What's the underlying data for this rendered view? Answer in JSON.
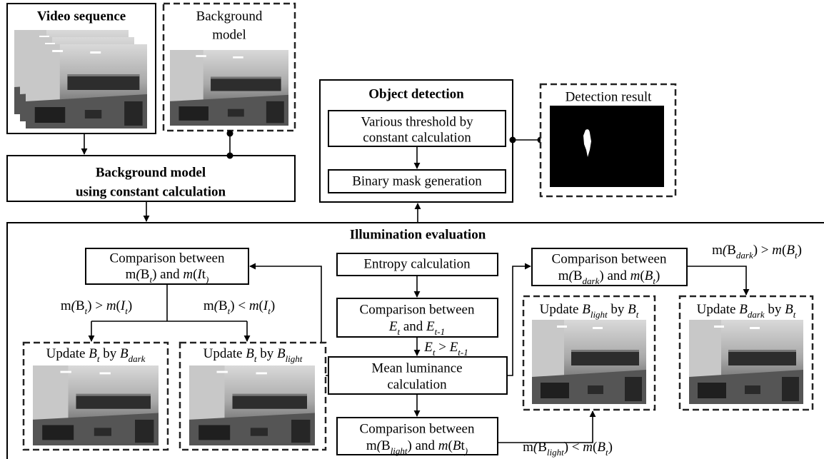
{
  "video_sequence": {
    "title": "Video sequence"
  },
  "background_model": {
    "label": [
      "Background",
      "model"
    ]
  },
  "constant_calculation": {
    "label": [
      "Background model",
      "using constant calculation"
    ]
  },
  "object_detection": {
    "title": "Object detection",
    "threshold": [
      "Various threshold by",
      "constant calculation"
    ],
    "mask": "Binary mask generation"
  },
  "detection_result": {
    "title": "Detection result"
  },
  "illumination_evaluation": {
    "title": "Illumination evaluation",
    "entropy": "Entropy calculation",
    "entropy_comparison": [
      "Comparison between",
      [
        "E",
        "t",
        " and ",
        "E",
        "t-1"
      ]
    ],
    "entropy_condition": [
      "E",
      "t",
      " > ",
      "E",
      "t-1"
    ],
    "mean_luminance": [
      "Mean luminance",
      "calculation"
    ],
    "input_comparison": [
      "Comparison between",
      [
        "m",
        "(",
        "B",
        "t",
        ") and ",
        "m",
        "(",
        "I",
        "t",
        ")"
      ]
    ],
    "input_darker": [
      "m",
      "(",
      "B",
      "t",
      ") > ",
      "m",
      "(",
      "I",
      "t",
      ")"
    ],
    "input_lighter": [
      "m",
      "(",
      "B",
      "t",
      ") < ",
      "m",
      "(",
      "I",
      "t",
      ")"
    ],
    "update_by_dark": [
      "Update ",
      "B",
      "t",
      " by ",
      "B",
      "dark"
    ],
    "update_by_light": [
      "Update ",
      "B",
      "t",
      " by ",
      "B",
      "light"
    ],
    "light_comparison": [
      "Comparison between",
      [
        "m",
        "(",
        "B",
        "light",
        ") and ",
        "m",
        "(",
        "B",
        "t",
        ")"
      ]
    ],
    "light_condition": [
      "m",
      "(",
      "B",
      "light",
      ") < ",
      "m",
      "(",
      "B",
      "t",
      ")"
    ],
    "dark_comparison": [
      "Comparison between",
      [
        "m",
        "(",
        "B",
        "dark",
        ") and ",
        "m",
        "(",
        "B",
        "t",
        ")"
      ]
    ],
    "dark_condition": [
      "m",
      "(",
      "B",
      "dark",
      ") > ",
      "m",
      "(",
      "B",
      "t",
      ")"
    ],
    "update_light": [
      "Update ",
      "B",
      "light",
      " by ",
      "B",
      "t"
    ],
    "update_dark": [
      "Update ",
      "B",
      "dark",
      " by ",
      "B",
      "t"
    ]
  }
}
